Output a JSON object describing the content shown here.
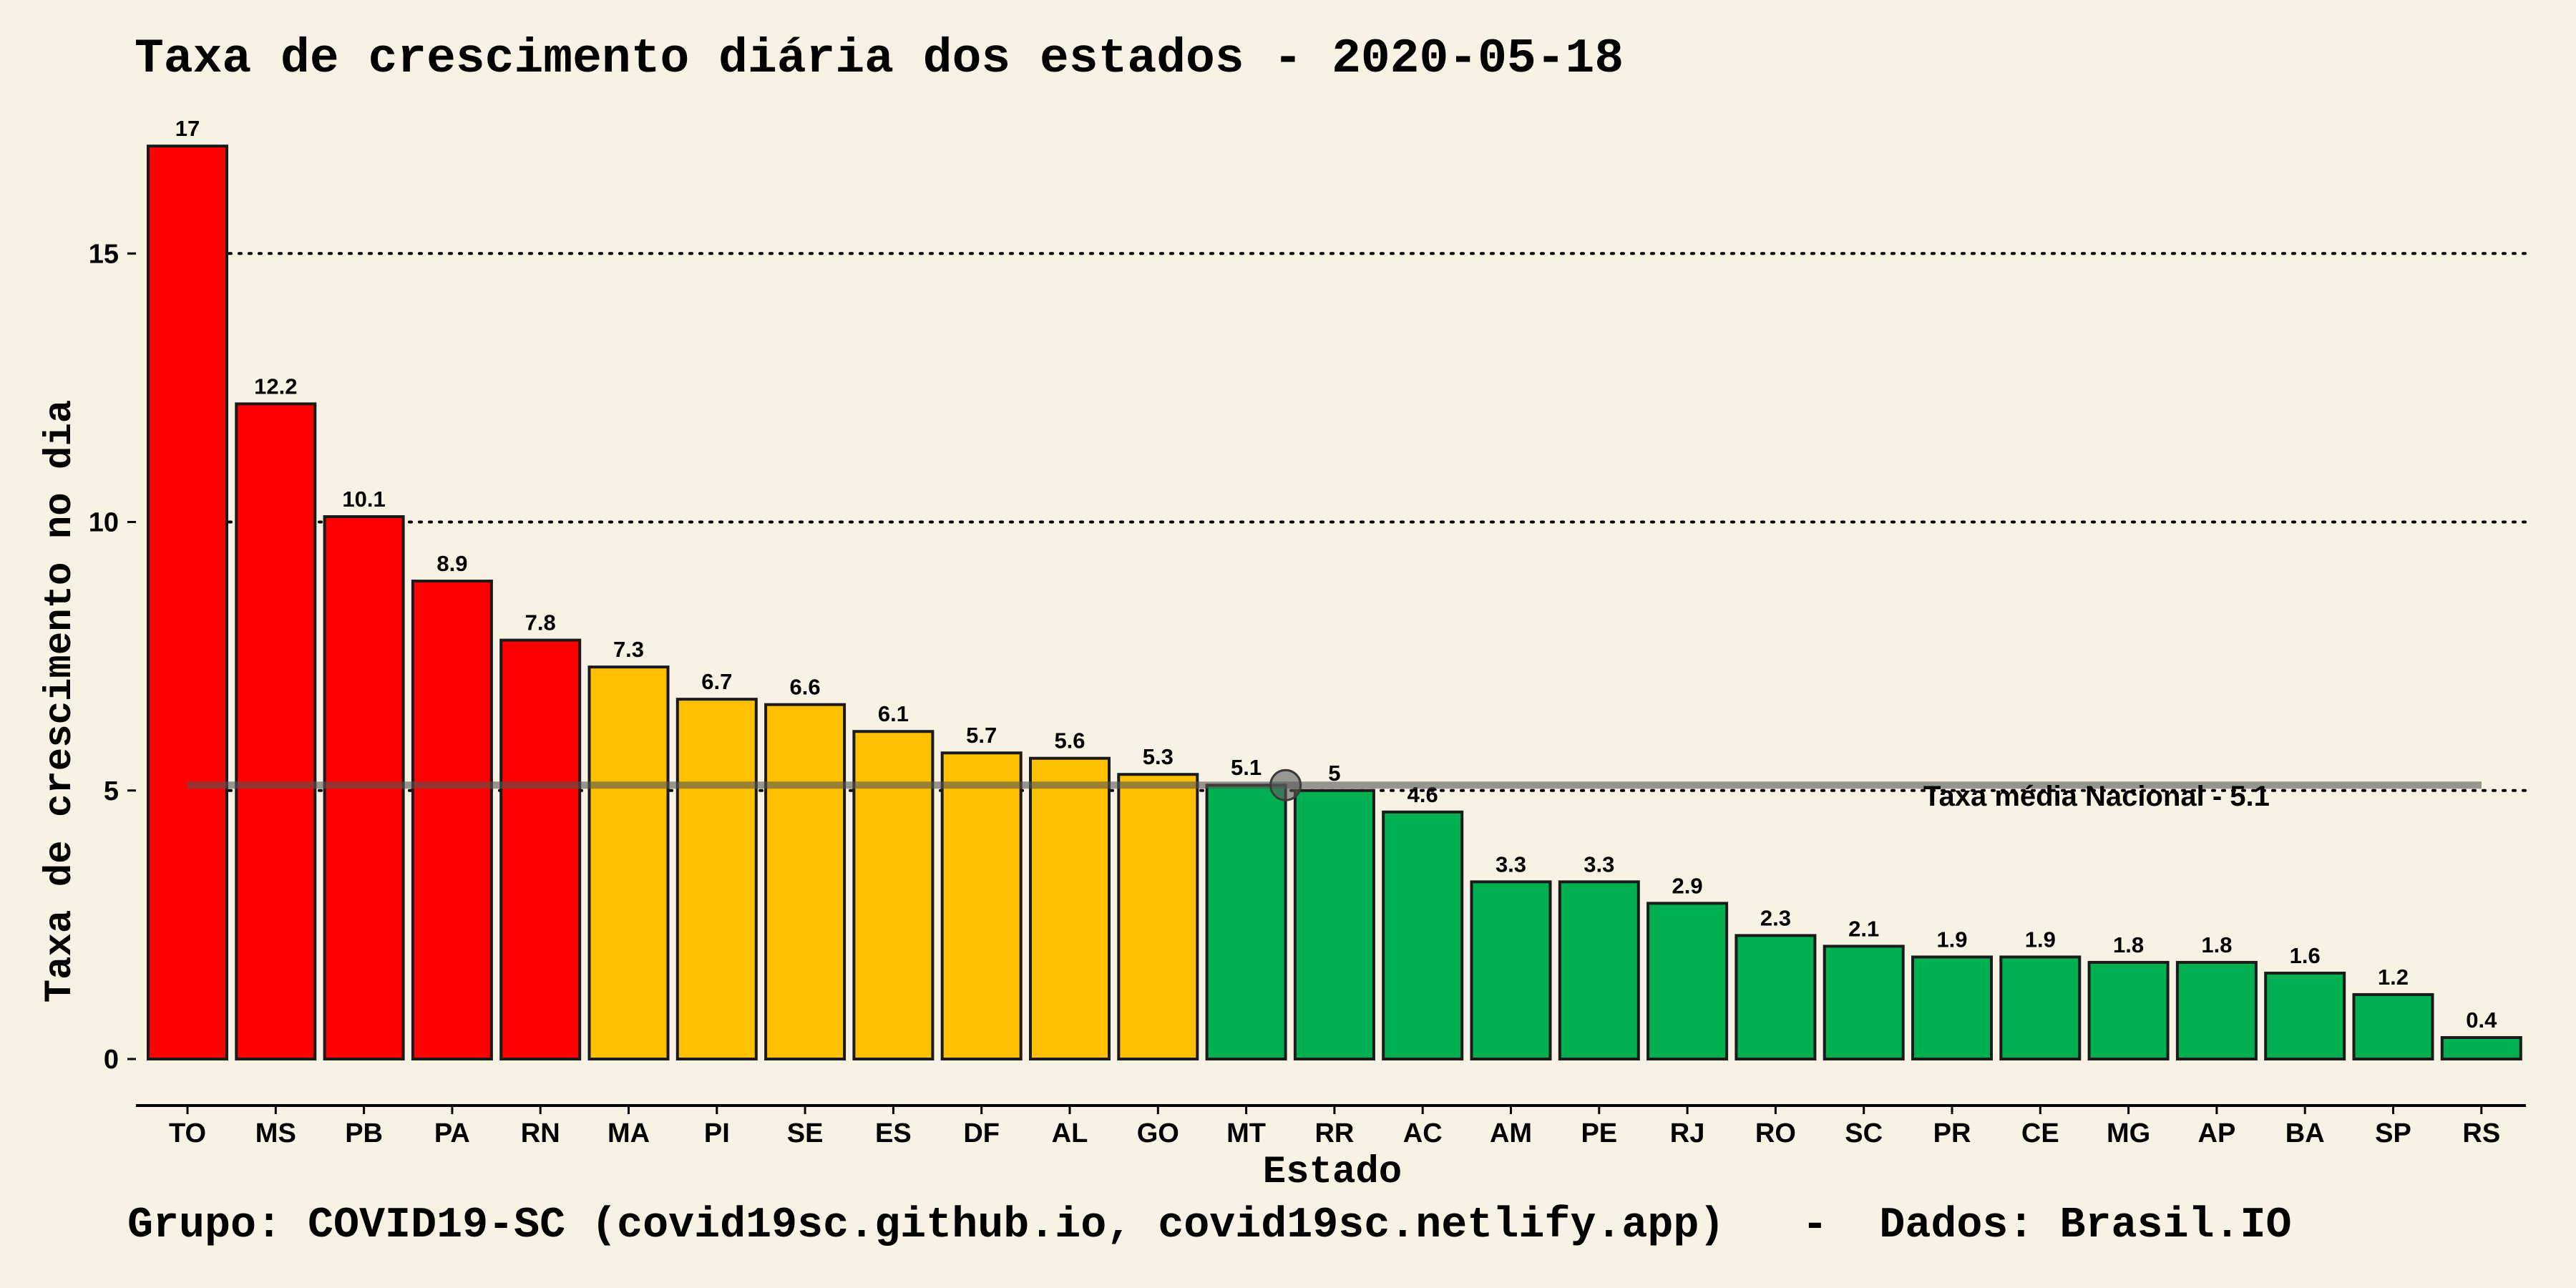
{
  "chart_data": {
    "type": "bar",
    "title": "Taxa de crescimento diária dos estados - 2020-05-18",
    "xlabel": "Estado",
    "ylabel": "Taxa de crescimento no dia",
    "footer": "Grupo: COVID19-SC (covid19sc.github.io, covid19sc.netlify.app)   -  Dados: Brasil.IO",
    "categories": [
      "TO",
      "MS",
      "PB",
      "PA",
      "RN",
      "MA",
      "PI",
      "SE",
      "ES",
      "DF",
      "AL",
      "GO",
      "MT",
      "RR",
      "AC",
      "AM",
      "PE",
      "RJ",
      "RO",
      "SC",
      "PR",
      "CE",
      "MG",
      "AP",
      "BA",
      "SP",
      "RS"
    ],
    "values": [
      17,
      12.2,
      10.1,
      8.9,
      7.8,
      7.3,
      6.7,
      6.6,
      6.1,
      5.7,
      5.6,
      5.3,
      5.1,
      5,
      4.6,
      3.3,
      3.3,
      2.9,
      2.3,
      2.1,
      1.9,
      1.9,
      1.8,
      1.8,
      1.6,
      1.2,
      0.4
    ],
    "value_labels": [
      "17",
      "12.2",
      "10.1",
      "8.9",
      "7.8",
      "7.3",
      "6.7",
      "6.6",
      "6.1",
      "5.7",
      "5.6",
      "5.3",
      "5.1",
      "5",
      "4.6",
      "3.3",
      "3.3",
      "2.9",
      "2.3",
      "2.1",
      "1.9",
      "1.9",
      "1.8",
      "1.8",
      "1.6",
      "1.2",
      "0.4"
    ],
    "bar_colors": [
      "#ff0000",
      "#ff0000",
      "#ff0000",
      "#ff0000",
      "#ff0000",
      "#ffc000",
      "#ffc000",
      "#ffc000",
      "#ffc000",
      "#ffc000",
      "#ffc000",
      "#ffc000",
      "#00b050",
      "#00b050",
      "#00b050",
      "#00b050",
      "#00b050",
      "#00b050",
      "#00b050",
      "#00b050",
      "#00b050",
      "#00b050",
      "#00b050",
      "#00b050",
      "#00b050",
      "#00b050",
      "#00b050"
    ],
    "yticks": [
      0,
      5,
      10,
      15
    ],
    "ytick_labels": [
      "0",
      "5",
      "10",
      "15"
    ],
    "ylim": [
      0,
      17
    ],
    "grid": "horizontal dotted",
    "reference_line": {
      "value": 5.1,
      "label": "Taxa média Nacional -  5.1",
      "marker_category": "MT"
    },
    "colors": {
      "background": "#f8f2e4",
      "red": "#ff0000",
      "yellow": "#ffc000",
      "green": "#00b050",
      "reference_line": "#555555"
    }
  }
}
